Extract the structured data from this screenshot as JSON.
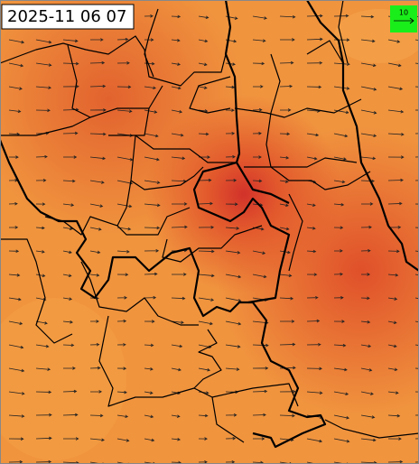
{
  "title": "2025-11 06 07",
  "legend": {
    "label": "10"
  }
}
